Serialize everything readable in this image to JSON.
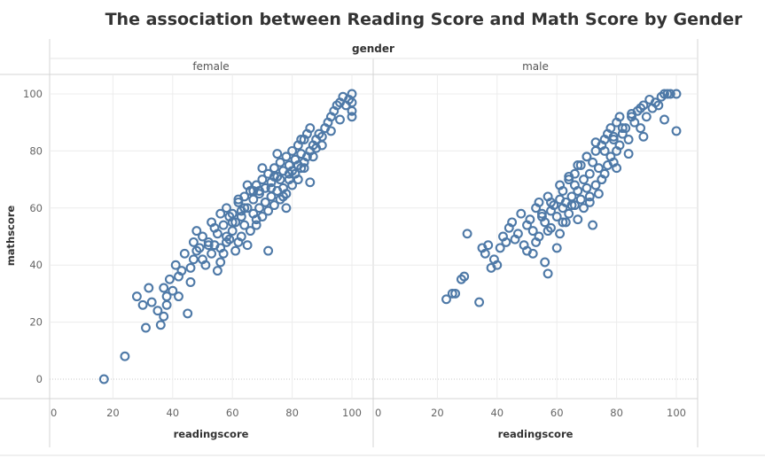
{
  "chart_data": {
    "type": "scatter",
    "title": "The association between Reading Score and Math Score by Gender",
    "facet_label": "gender",
    "xlabel": "readingscore",
    "ylabel": "mathscore",
    "xlim": [
      0,
      100
    ],
    "ylim": [
      0,
      100
    ],
    "x_ticks": [
      0,
      20,
      40,
      60,
      80,
      100
    ],
    "y_ticks": [
      0,
      20,
      40,
      60,
      80,
      100
    ],
    "grid": true,
    "marker": "open-circle",
    "color": "#4e79a7",
    "panels": [
      {
        "name": "female",
        "x": [
          17,
          24,
          28,
          30,
          31,
          32,
          33,
          35,
          36,
          37,
          37,
          38,
          38,
          39,
          40,
          41,
          42,
          42,
          43,
          44,
          45,
          46,
          46,
          47,
          47,
          48,
          48,
          49,
          50,
          50,
          51,
          52,
          53,
          53,
          54,
          54,
          55,
          56,
          56,
          57,
          57,
          58,
          58,
          59,
          60,
          60,
          61,
          61,
          62,
          62,
          63,
          63,
          64,
          64,
          65,
          65,
          66,
          66,
          67,
          67,
          68,
          68,
          69,
          69,
          70,
          70,
          71,
          71,
          72,
          72,
          73,
          73,
          74,
          74,
          75,
          75,
          76,
          76,
          77,
          77,
          78,
          78,
          79,
          79,
          80,
          80,
          81,
          81,
          82,
          82,
          83,
          83,
          84,
          84,
          85,
          85,
          86,
          86,
          87,
          88,
          89,
          90,
          91,
          92,
          93,
          94,
          95,
          96,
          97,
          98,
          99,
          100,
          100,
          100,
          100,
          56,
          60,
          62,
          65,
          68,
          70,
          72,
          75,
          78,
          80,
          83,
          86,
          58,
          63,
          67,
          71,
          74,
          77,
          81,
          84,
          88,
          52,
          55,
          59,
          64,
          69,
          73,
          76,
          79,
          82,
          87,
          90,
          93,
          96
        ],
        "y": [
          0,
          8,
          29,
          26,
          18,
          32,
          27,
          24,
          19,
          22,
          32,
          26,
          29,
          35,
          31,
          40,
          29,
          36,
          38,
          44,
          23,
          39,
          34,
          42,
          48,
          45,
          52,
          46,
          42,
          50,
          40,
          48,
          44,
          55,
          47,
          53,
          38,
          46,
          58,
          44,
          54,
          50,
          60,
          49,
          52,
          58,
          45,
          55,
          48,
          62,
          50,
          57,
          54,
          64,
          47,
          60,
          52,
          66,
          58,
          63,
          54,
          68,
          60,
          66,
          57,
          70,
          62,
          67,
          59,
          72,
          64,
          69,
          61,
          74,
          66,
          71,
          63,
          76,
          67,
          73,
          65,
          78,
          70,
          75,
          68,
          80,
          72,
          77,
          70,
          82,
          74,
          79,
          76,
          84,
          78,
          86,
          80,
          88,
          82,
          84,
          86,
          85,
          88,
          90,
          92,
          94,
          96,
          97,
          99,
          96,
          98,
          100,
          97,
          94,
          92,
          41,
          55,
          63,
          68,
          56,
          74,
          45,
          79,
          60,
          73,
          84,
          69,
          48,
          59,
          66,
          62,
          71,
          64,
          77,
          74,
          81,
          47,
          51,
          57,
          60,
          65,
          67,
          70,
          72,
          75,
          78,
          82,
          87,
          91
        ]
      },
      {
        "name": "male",
        "x": [
          23,
          25,
          26,
          28,
          29,
          30,
          34,
          35,
          36,
          37,
          38,
          39,
          40,
          41,
          42,
          43,
          44,
          45,
          46,
          47,
          48,
          49,
          50,
          50,
          51,
          52,
          53,
          53,
          54,
          54,
          55,
          56,
          56,
          57,
          57,
          58,
          58,
          59,
          60,
          60,
          61,
          61,
          62,
          62,
          63,
          63,
          64,
          64,
          65,
          65,
          66,
          66,
          67,
          67,
          68,
          68,
          69,
          69,
          70,
          70,
          71,
          71,
          72,
          72,
          73,
          73,
          74,
          74,
          75,
          75,
          76,
          76,
          77,
          77,
          78,
          78,
          79,
          79,
          80,
          80,
          81,
          81,
          82,
          83,
          84,
          85,
          86,
          87,
          88,
          89,
          90,
          91,
          92,
          93,
          94,
          95,
          96,
          97,
          98,
          100,
          100,
          55,
          58,
          61,
          64,
          67,
          70,
          73,
          76,
          79,
          82,
          85,
          88,
          52,
          57,
          62,
          66,
          71,
          75,
          80,
          84,
          89,
          96
        ],
        "y": [
          28,
          30,
          30,
          35,
          36,
          51,
          27,
          46,
          44,
          47,
          39,
          42,
          40,
          46,
          50,
          48,
          53,
          55,
          49,
          51,
          58,
          47,
          45,
          54,
          56,
          52,
          60,
          48,
          62,
          50,
          57,
          41,
          55,
          64,
          37,
          53,
          59,
          61,
          46,
          57,
          63,
          51,
          60,
          66,
          55,
          62,
          70,
          58,
          64,
          61,
          68,
          72,
          56,
          66,
          63,
          75,
          60,
          70,
          67,
          78,
          62,
          72,
          54,
          76,
          68,
          80,
          65,
          74,
          70,
          82,
          72,
          84,
          75,
          86,
          78,
          88,
          76,
          84,
          80,
          90,
          82,
          92,
          86,
          88,
          84,
          92,
          90,
          94,
          88,
          96,
          92,
          98,
          95,
          97,
          96,
          99,
          100,
          100,
          100,
          100,
          87,
          58,
          62,
          68,
          71,
          75,
          78,
          83,
          80,
          85,
          88,
          93,
          95,
          44,
          52,
          55,
          61,
          64,
          70,
          74,
          79,
          85,
          91
        ]
      }
    ]
  }
}
